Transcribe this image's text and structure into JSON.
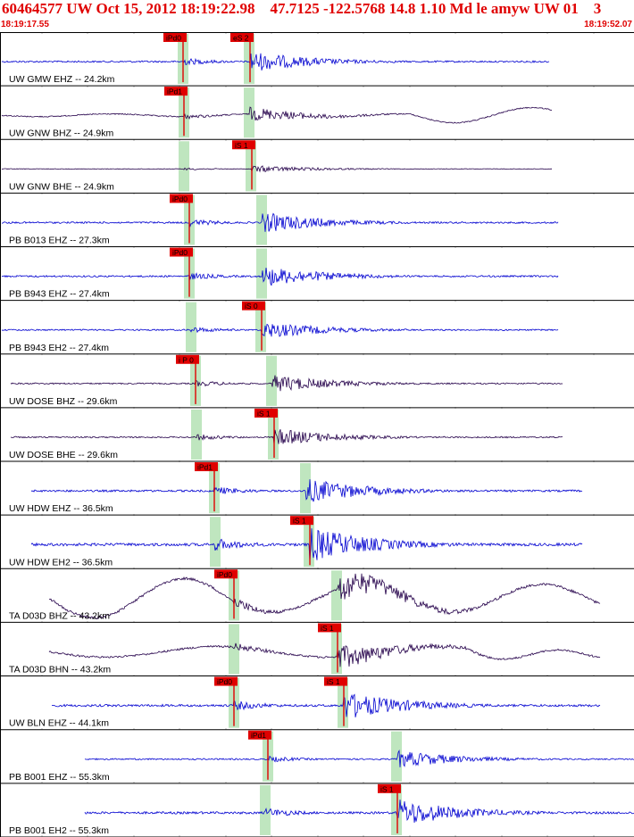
{
  "header": {
    "title": "60464577 UW Oct 15, 2012 18:19:22.98    47.7125 -122.5768 14.8 1.10 Md le amyw UW 01    3",
    "time_start": "18:19:17.55",
    "time_end": "18:19:52.07"
  },
  "colors": {
    "pick_red": "#e00000",
    "pick_window": "#bfe6bf",
    "trace_blue": "#0000d0",
    "trace_dark": "#24004a",
    "grid": "#888888"
  },
  "traces": [
    {
      "label": "UW GMW EHZ -- 24.2km",
      "color": "#0000d0",
      "kind": "hf",
      "picks": [
        {
          "label": "iPd0",
          "phase": "P"
        },
        {
          "label": "eS 2",
          "phase": "S"
        }
      ]
    },
    {
      "label": "UW GNW BHZ -- 24.9km",
      "color": "#24004a",
      "kind": "lp",
      "picks": [
        {
          "label": "iPd1",
          "phase": "P"
        }
      ]
    },
    {
      "label": "UW GNW BHE -- 24.9km",
      "color": "#24004a",
      "kind": "hf",
      "picks": [
        {
          "label": "iS 1",
          "phase": "S"
        }
      ]
    },
    {
      "label": "PB B013 EHZ -- 27.3km",
      "color": "#0000d0",
      "kind": "hf",
      "picks": [
        {
          "label": "iPd0",
          "phase": "P"
        }
      ]
    },
    {
      "label": "PB B943 EHZ -- 27.4km",
      "color": "#0000d0",
      "kind": "hf",
      "picks": [
        {
          "label": "iPd0",
          "phase": "P"
        }
      ]
    },
    {
      "label": "PB B943 EH2 -- 27.4km",
      "color": "#0000d0",
      "kind": "hf",
      "picks": [
        {
          "label": "iS 0",
          "phase": "S"
        }
      ]
    },
    {
      "label": "UW DOSE BHZ -- 29.6km",
      "color": "#24004a",
      "kind": "hf",
      "picks": [
        {
          "label": "i P 0",
          "phase": "P"
        }
      ]
    },
    {
      "label": "UW DOSE BHE -- 29.6km",
      "color": "#24004a",
      "kind": "hf",
      "picks": [
        {
          "label": "iS 1",
          "phase": "S"
        }
      ]
    },
    {
      "label": "UW HDW EHZ -- 36.5km",
      "color": "#0000d0",
      "kind": "hf",
      "picks": [
        {
          "label": "iPd1",
          "phase": "P"
        }
      ]
    },
    {
      "label": "UW HDW EH2 -- 36.5km",
      "color": "#0000d0",
      "kind": "hf",
      "picks": [
        {
          "label": "iS 1",
          "phase": "S"
        }
      ]
    },
    {
      "label": "TA D03D BHZ -- 43.2km",
      "color": "#24004a",
      "kind": "lp2",
      "picks": [
        {
          "label": "iPd0",
          "phase": "P"
        }
      ]
    },
    {
      "label": "TA D03D BHN -- 43.2km",
      "color": "#24004a",
      "kind": "lp3",
      "picks": [
        {
          "label": "iS 1",
          "phase": "S"
        }
      ]
    },
    {
      "label": "UW BLN EHZ -- 44.1km",
      "color": "#0000d0",
      "kind": "hf",
      "picks": [
        {
          "label": "iPd0",
          "phase": "P"
        },
        {
          "label": "iS 1",
          "phase": "S"
        }
      ]
    },
    {
      "label": "PB B001 EHZ -- 55.3km",
      "color": "#0000d0",
      "kind": "hf",
      "picks": [
        {
          "label": "iPd1",
          "phase": "P"
        }
      ]
    },
    {
      "label": "PB B001 EH2 -- 55.3km",
      "color": "#0000d0",
      "kind": "hf",
      "picks": [
        {
          "label": "iS 1",
          "phase": "S"
        }
      ]
    }
  ]
}
